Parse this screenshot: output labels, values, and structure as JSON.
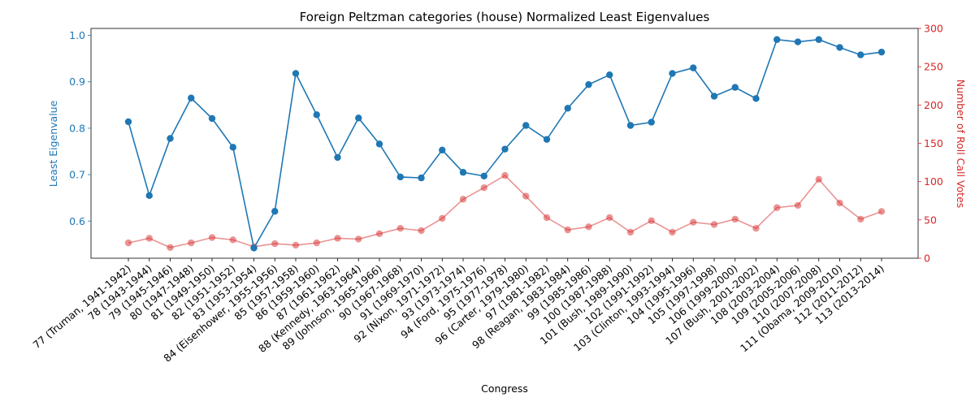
{
  "chart_data": {
    "type": "line",
    "title": "Foreign Peltzman categories (house) Normalized Least Eigenvalues",
    "xlabel": "Congress",
    "ylabel_left": "Least Eigenvalue",
    "ylabel_right": "Number of Roll Call Votes",
    "ylim_left": [
      0.52,
      1.015
    ],
    "ylim_right": [
      0,
      300
    ],
    "yticks_left": [
      "0.6",
      "0.7",
      "0.8",
      "0.9",
      "1.0"
    ],
    "yticks_right": [
      "0",
      "50",
      "100",
      "150",
      "200",
      "250",
      "300"
    ],
    "grid": false,
    "colors": {
      "left": "#1f77b4",
      "right": "#d62728"
    },
    "categories": [
      "77 (Truman, 1941-1942)",
      "78 (1943-1944)",
      "79 (1945-1946)",
      "80 (1947-1948)",
      "81 (1949-1950)",
      "82 (1951-1952)",
      "83 (1953-1954)",
      "84 (Eisenhower, 1955-1956)",
      "85 (1957-1958)",
      "86 (1959-1960)",
      "87 (1961-1962)",
      "88 (Kennedy, 1963-1964)",
      "89 (Johnson, 1965-1966)",
      "90 (1967-1968)",
      "91 (1969-1970)",
      "92 (Nixon, 1971-1972)",
      "93 (1973-1974)",
      "94 (Ford, 1975-1976)",
      "95 (1977-1978)",
      "96 (Carter, 1979-1980)",
      "97 (1981-1982)",
      "98 (Reagan, 1983-1984)",
      "99 (1985-1986)",
      "100 (1987-1988)",
      "101 (Bush, 1989-1990)",
      "102 (1991-1992)",
      "103 (Clinton, 1993-1994)",
      "104 (1995-1996)",
      "105 (1997-1998)",
      "106 (1999-2000)",
      "107 (Bush, 2001-2002)",
      "108 (2003-2004)",
      "109 (2005-2006)",
      "110 (2007-2008)",
      "111 (Obama, 2009-2010)",
      "112 (2011-2012)",
      "113 (2013-2014)"
    ],
    "series": [
      {
        "name": "Least Eigenvalue",
        "axis": "left",
        "values": [
          0.814,
          0.655,
          0.778,
          0.865,
          0.821,
          0.759,
          0.542,
          0.621,
          0.918,
          0.829,
          0.737,
          0.822,
          0.766,
          0.695,
          0.693,
          0.753,
          0.705,
          0.697,
          0.755,
          0.806,
          0.776,
          0.843,
          0.894,
          0.915,
          0.806,
          0.813,
          0.918,
          0.93,
          0.869,
          0.888,
          0.864,
          0.991,
          0.986,
          0.991,
          0.974,
          0.958,
          0.964
        ]
      },
      {
        "name": "Number of Roll Call Votes",
        "axis": "right",
        "values": [
          20,
          26,
          14,
          20,
          27,
          24,
          15,
          19,
          17,
          20,
          26,
          25,
          32,
          39,
          36,
          52,
          77,
          92,
          108,
          81,
          53,
          37,
          41,
          53,
          34,
          49,
          34,
          47,
          44,
          51,
          39,
          66,
          69,
          103,
          72,
          51,
          61
        ]
      }
    ]
  }
}
